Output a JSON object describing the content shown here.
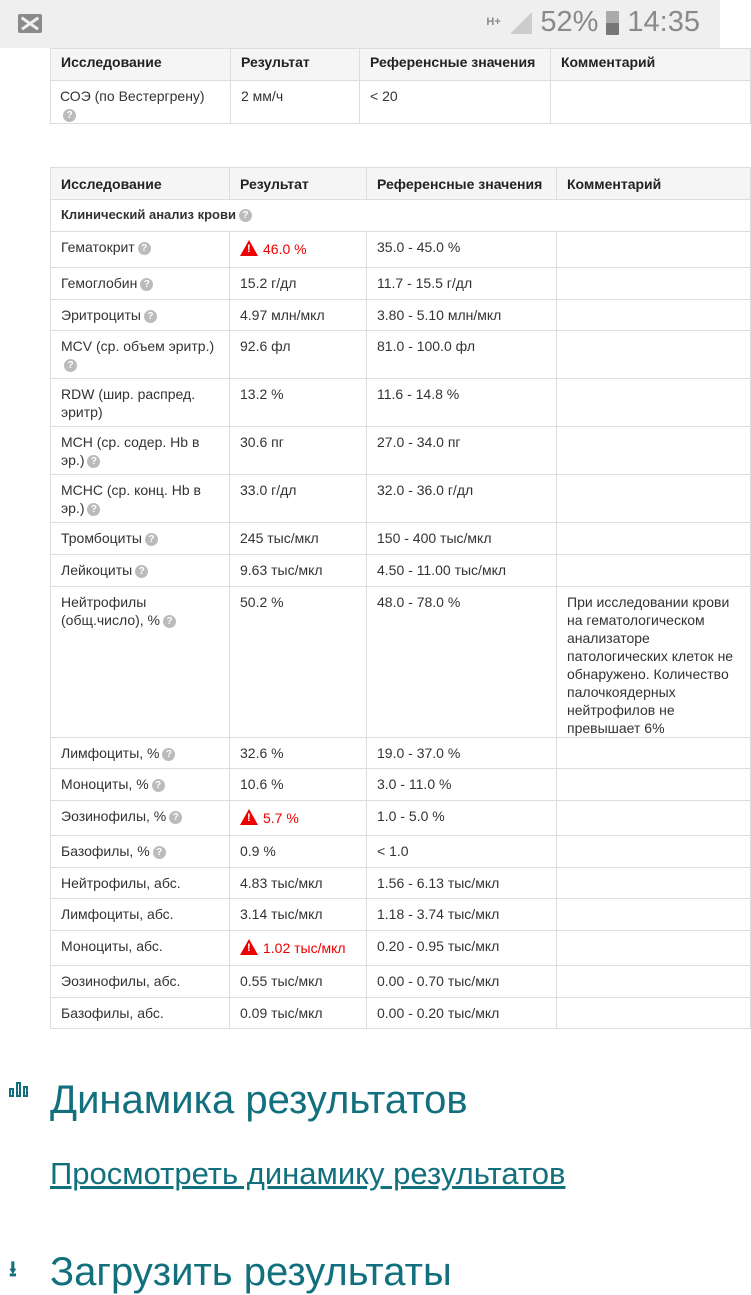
{
  "status_bar": {
    "network": "H+",
    "battery": "52%",
    "time": "14:35"
  },
  "table1": {
    "headers": [
      "Исследование",
      "Результат",
      "Референсные значения",
      "Комментарий"
    ],
    "rows": [
      {
        "name": "СОЭ (по Вестергрену)",
        "result": "2 мм/ч",
        "ref": "< 20",
        "comment": ""
      }
    ]
  },
  "table2": {
    "headers": [
      "Исследование",
      "Результат",
      "Референсные значения",
      "Комментарий"
    ],
    "section": "Клинический анализ крови",
    "rows": [
      {
        "name": "Гематокрит",
        "help": true,
        "result": "46.0 %",
        "alert": true,
        "ref": "35.0 - 45.0 %",
        "comment": ""
      },
      {
        "name": "Гемоглобин",
        "help": true,
        "result": "15.2 г/дл",
        "ref": "11.7 - 15.5 г/дл",
        "comment": ""
      },
      {
        "name": "Эритроциты",
        "help": true,
        "result": "4.97 млн/мкл",
        "ref": "3.80 - 5.10 млн/мкл",
        "comment": ""
      },
      {
        "name": "MCV (ср. объем эритр.)",
        "help": true,
        "result": "92.6 фл",
        "ref": "81.0 - 100.0 фл",
        "comment": ""
      },
      {
        "name": "RDW (шир. распред. эритр)",
        "help": false,
        "result": "13.2 %",
        "ref": "11.6 - 14.8 %",
        "comment": ""
      },
      {
        "name": "MCH (ср. содер. Hb в эр.)",
        "help": true,
        "result": "30.6 пг",
        "ref": "27.0 - 34.0 пг",
        "comment": ""
      },
      {
        "name": "MCHC (ср. конц. Hb в эр.)",
        "help": true,
        "result": "33.0 г/дл",
        "ref": "32.0 - 36.0 г/дл",
        "comment": ""
      },
      {
        "name": "Тромбоциты",
        "help": true,
        "result": "245 тыс/мкл",
        "ref": "150 - 400 тыс/мкл",
        "comment": ""
      },
      {
        "name": "Лейкоциты",
        "help": true,
        "result": "9.63 тыс/мкл",
        "ref": "4.50 - 11.00 тыс/мкл",
        "comment": ""
      },
      {
        "name": "Нейтрофилы (общ.число), %",
        "help": true,
        "result": "50.2 %",
        "ref": "48.0 - 78.0 %",
        "comment": "При исследовании крови на гематологическом анализаторе патологических клеток не обнаружено. Количество палочкоядерных нейтрофилов не превышает 6%"
      },
      {
        "name": "Лимфоциты, %",
        "help": true,
        "result": "32.6 %",
        "ref": "19.0 - 37.0 %",
        "comment": ""
      },
      {
        "name": "Моноциты, %",
        "help": true,
        "result": "10.6 %",
        "ref": "3.0 - 11.0 %",
        "comment": ""
      },
      {
        "name": "Эозинофилы, %",
        "help": true,
        "result": "5.7 %",
        "alert": true,
        "ref": "1.0 - 5.0 %",
        "comment": ""
      },
      {
        "name": "Базофилы, %",
        "help": true,
        "result": "0.9 %",
        "ref": "< 1.0",
        "comment": ""
      },
      {
        "name": "Нейтрофилы, абс.",
        "help": false,
        "result": "4.83 тыс/мкл",
        "ref": "1.56 - 6.13 тыс/мкл",
        "comment": ""
      },
      {
        "name": "Лимфоциты, абс.",
        "help": false,
        "result": "3.14 тыс/мкл",
        "ref": "1.18 - 3.74 тыс/мкл",
        "comment": ""
      },
      {
        "name": "Моноциты, абс.",
        "help": false,
        "result": "1.02 тыс/мкл",
        "alert": true,
        "ref": "0.20 - 0.95 тыс/мкл",
        "comment": ""
      },
      {
        "name": "Эозинофилы, абс.",
        "help": false,
        "result": "0.55 тыс/мкл",
        "ref": "0.00 - 0.70 тыс/мкл",
        "comment": ""
      },
      {
        "name": "Базофилы, абс.",
        "help": false,
        "result": "0.09 тыс/мкл",
        "ref": "0.00 - 0.20 тыс/мкл",
        "comment": ""
      }
    ]
  },
  "dynamics": {
    "title": "Динамика результатов",
    "link": "Просмотреть динамику результатов"
  },
  "download": {
    "title": "Загрузить результаты"
  },
  "colors": {
    "accent": "#12707e",
    "alert": "#e00000"
  }
}
